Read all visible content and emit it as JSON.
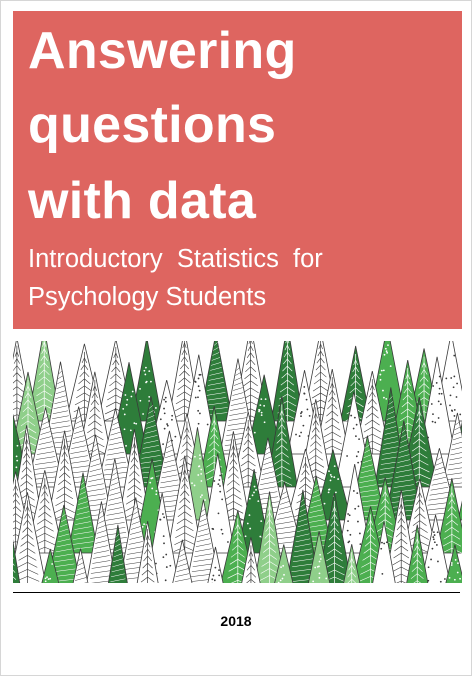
{
  "cover": {
    "title_lines": [
      "Answering",
      "questions",
      "with data"
    ],
    "subtitle_lines": [
      "Introductory  Statistics  for",
      "Psychology Students"
    ],
    "year": "2018"
  },
  "illustration": {
    "icon": "forest-pattern-icon",
    "colors": {
      "title_background": "#de6560",
      "dark_green": "#2e7d3a",
      "mid_green": "#4caf50",
      "light_green": "#8fcf8a",
      "line": "#3a3a3a"
    }
  }
}
